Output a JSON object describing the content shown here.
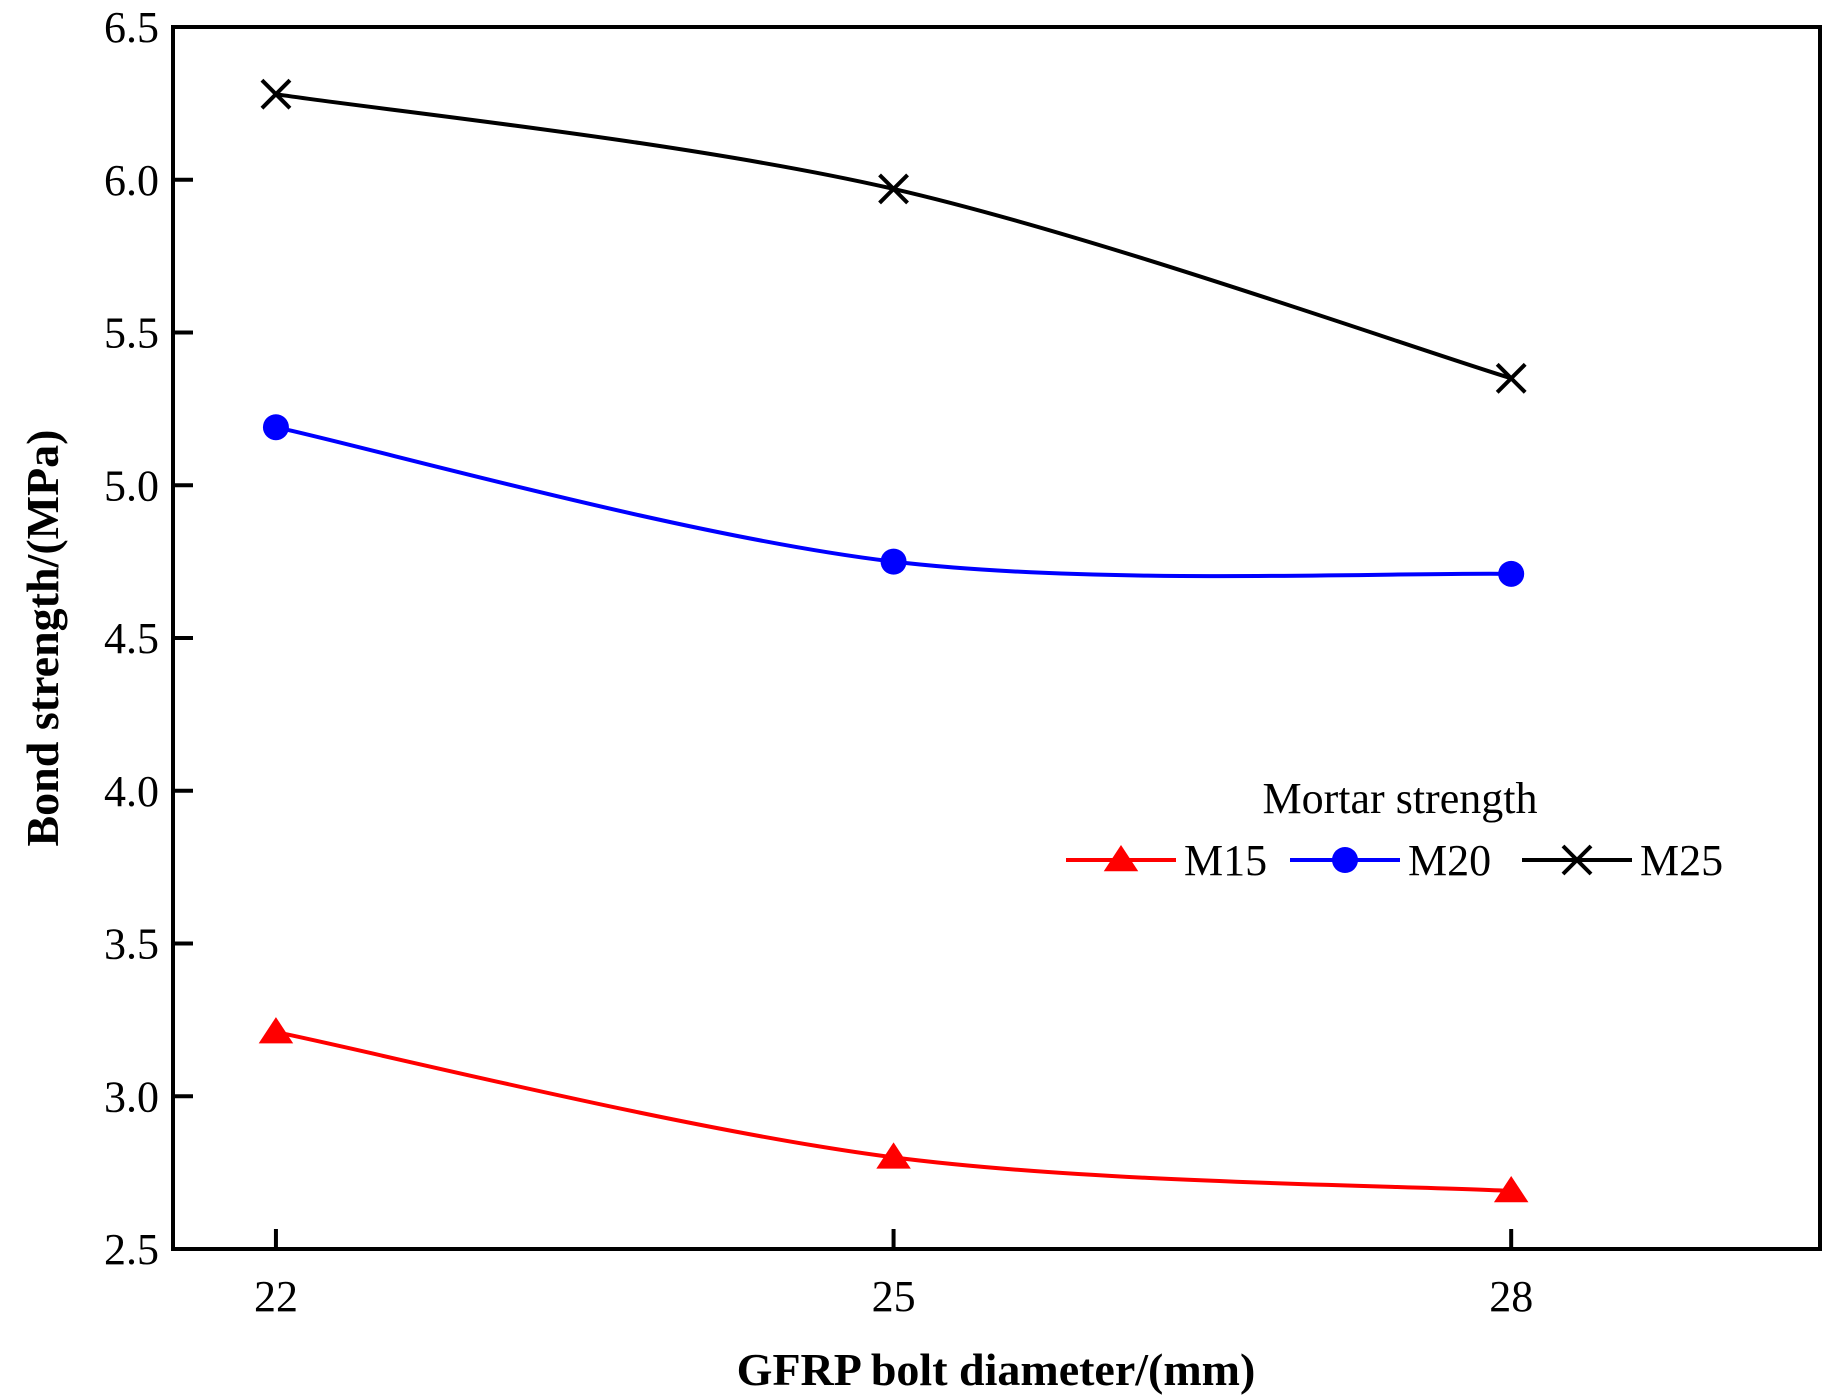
{
  "chart_data": {
    "type": "line",
    "xlabel": "GFRP bolt diameter/(mm)",
    "ylabel": "Bond strength/(MPa)",
    "x": [
      22,
      25,
      28
    ],
    "x_tick_labels": [
      "22",
      "25",
      "28"
    ],
    "xlim": [
      21.5,
      29.5
    ],
    "ylim": [
      2.5,
      6.5
    ],
    "y_ticks": [
      2.5,
      3.0,
      3.5,
      4.0,
      4.5,
      5.0,
      5.5,
      6.0,
      6.5
    ],
    "y_tick_labels": [
      "2.5",
      "3.0",
      "3.5",
      "4.0",
      "4.5",
      "5.0",
      "5.5",
      "6.0",
      "6.5"
    ],
    "grid": false,
    "legend": {
      "title": "Mortar strength",
      "placement": "center-right",
      "orientation": "horizontal"
    },
    "series": [
      {
        "name": "M15",
        "values": [
          3.21,
          2.8,
          2.69
        ],
        "color": "#ff0000",
        "marker": "triangle"
      },
      {
        "name": "M20",
        "values": [
          5.19,
          4.75,
          4.71
        ],
        "color": "#0000ff",
        "marker": "circle"
      },
      {
        "name": "M25",
        "values": [
          6.28,
          5.97,
          5.35
        ],
        "color": "#000000",
        "marker": "x"
      }
    ]
  }
}
